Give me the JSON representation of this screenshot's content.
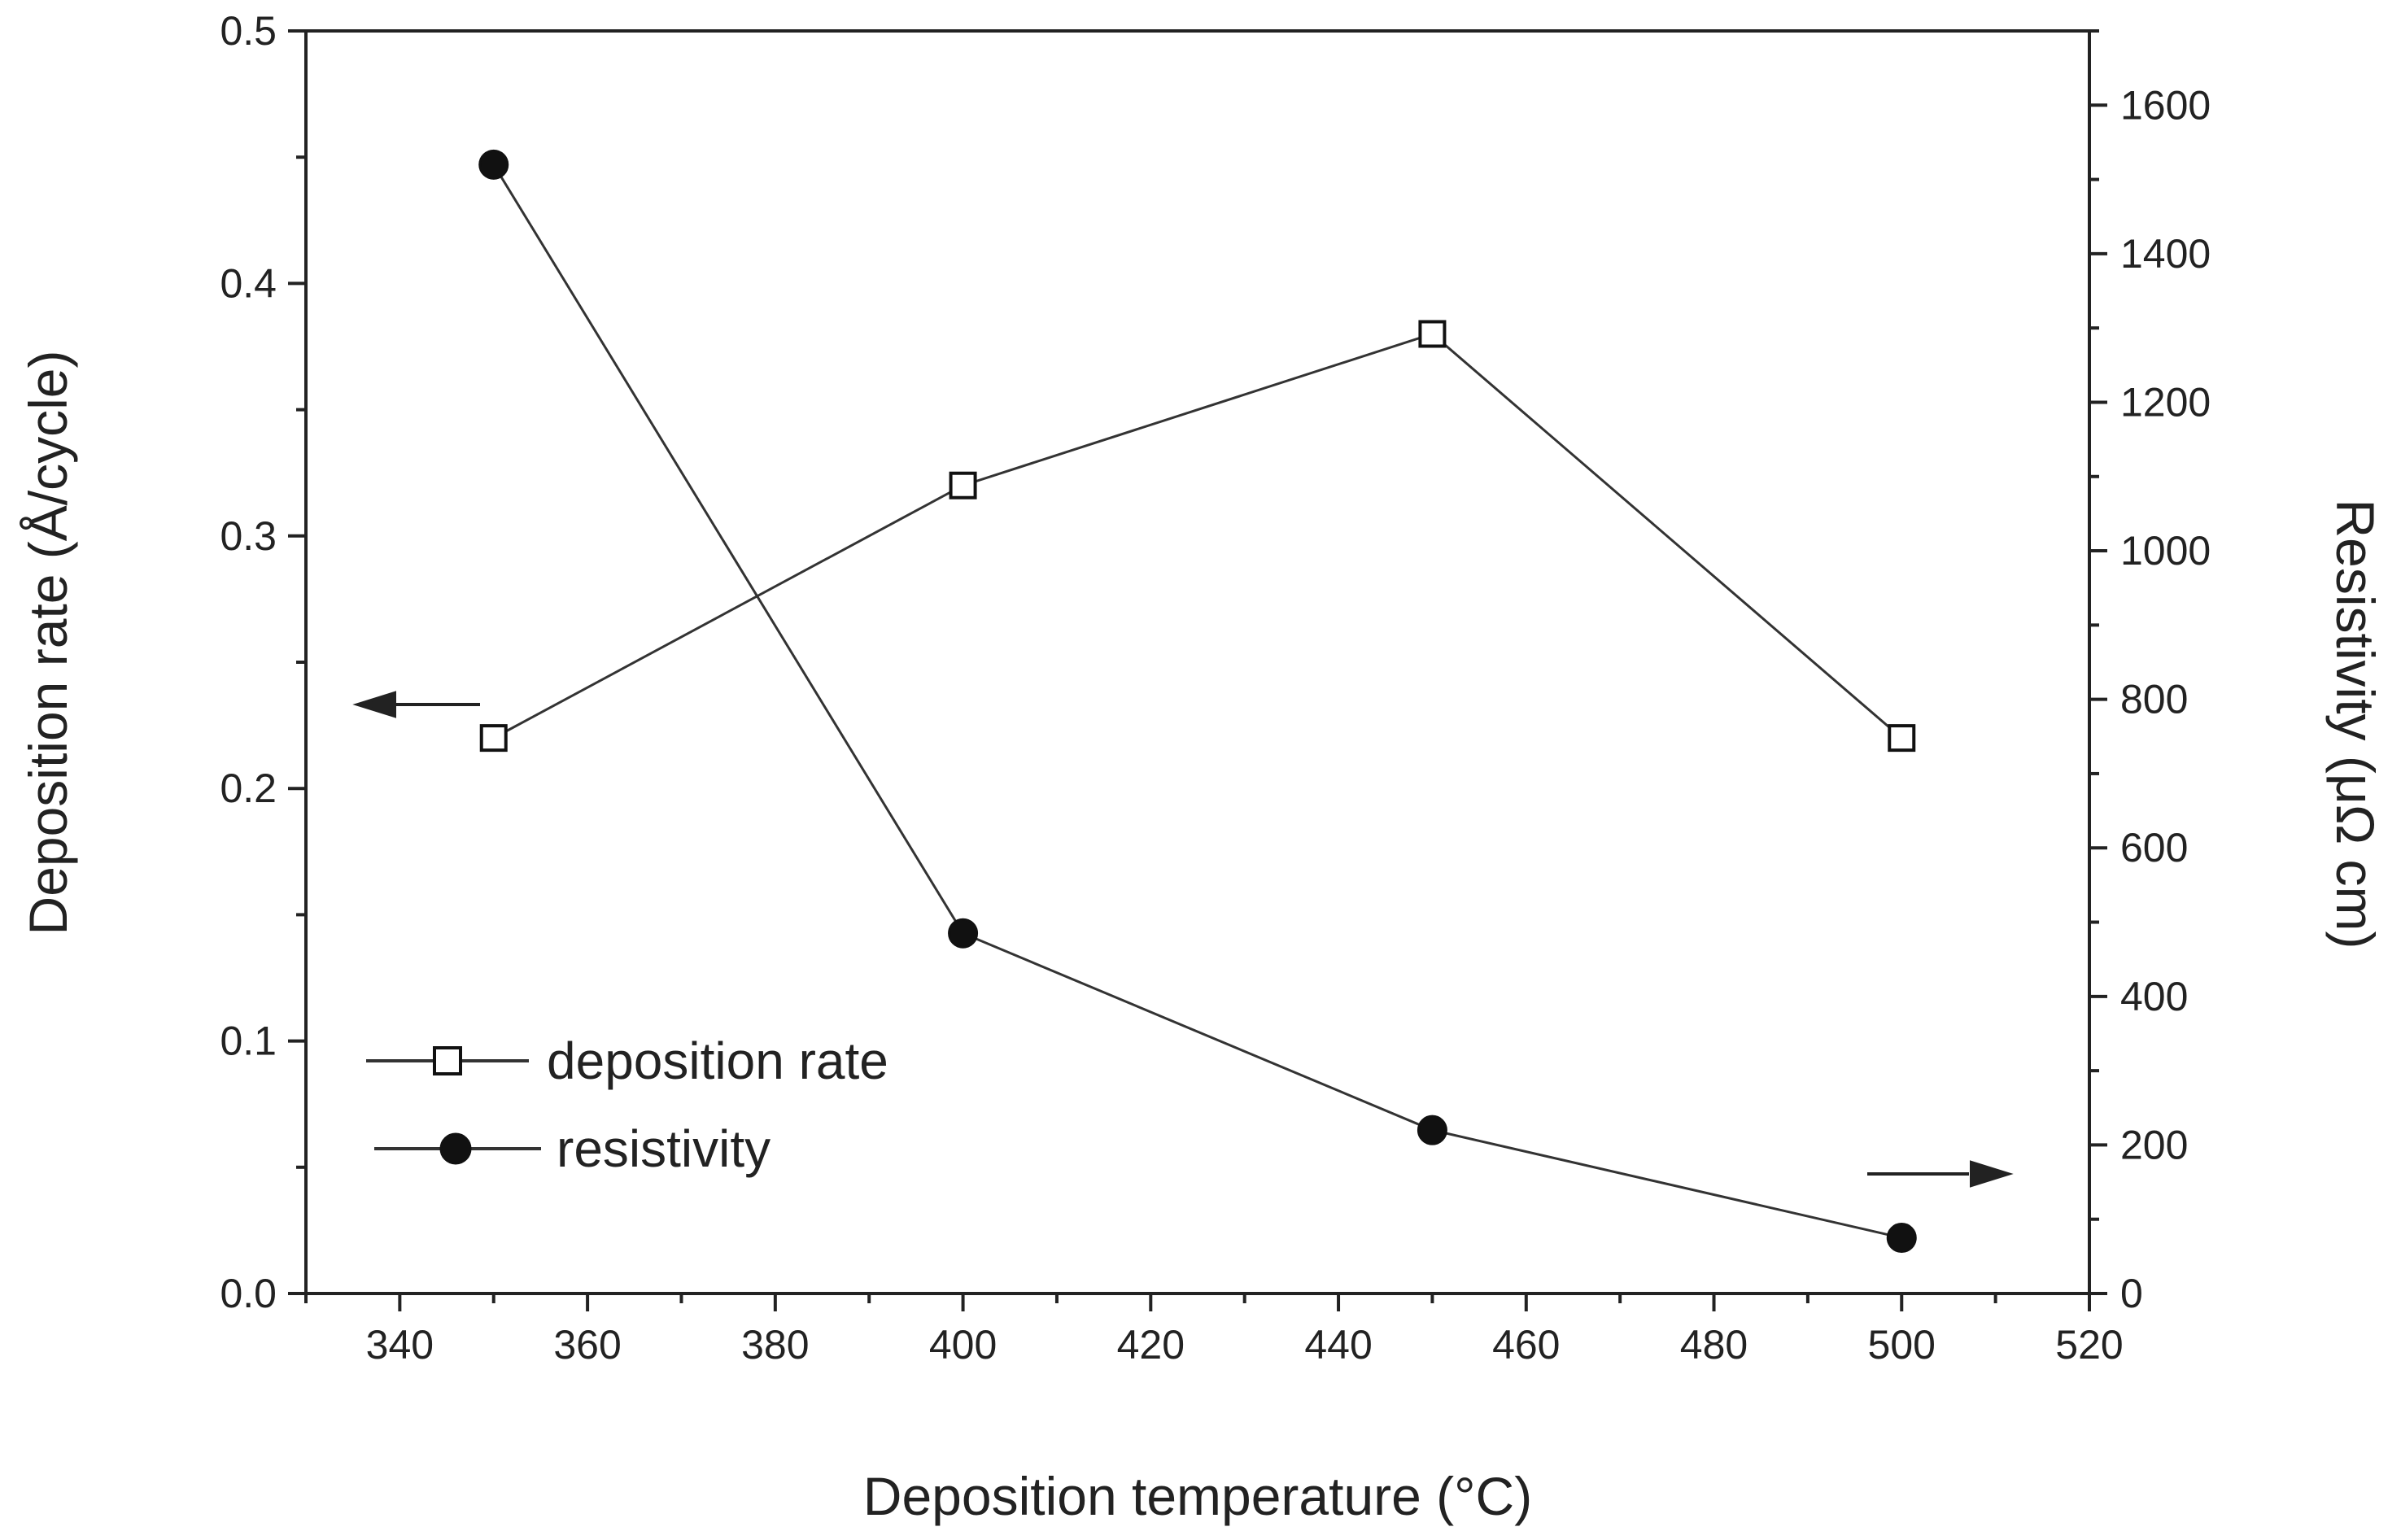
{
  "chart_data": {
    "type": "line",
    "title": "",
    "xlabel": "Deposition temperature (°C)",
    "ylabel_left": "Deposition rate (Å/cycle)",
    "ylabel_right": "Resistivity (μΩ cm)",
    "xlim": [
      330,
      520
    ],
    "ylim_left": [
      0,
      0.5
    ],
    "ylim_right": [
      0,
      1700
    ],
    "x_ticks": [
      "340",
      "360",
      "380",
      "400",
      "420",
      "440",
      "460",
      "480",
      "500",
      "520"
    ],
    "y_left_ticks": [
      "0.0",
      "0.1",
      "0.2",
      "0.3",
      "0.4",
      "0.5"
    ],
    "y_right_ticks": [
      "0",
      "200",
      "400",
      "600",
      "800",
      "1000",
      "1200",
      "1400",
      "1600"
    ],
    "x": [
      350,
      400,
      450,
      500
    ],
    "series": [
      {
        "name": "deposition rate",
        "axis": "left",
        "marker": "open-square",
        "values": [
          0.22,
          0.32,
          0.38,
          0.22
        ]
      },
      {
        "name": "resistivity",
        "axis": "right",
        "marker": "filled-circle",
        "values": [
          1520,
          485,
          220,
          75
        ]
      }
    ],
    "legend_position": "bottom-left",
    "grid": false,
    "colors": {
      "line": "#333333",
      "marker_fill": "#111111",
      "axis": "#222222"
    }
  }
}
